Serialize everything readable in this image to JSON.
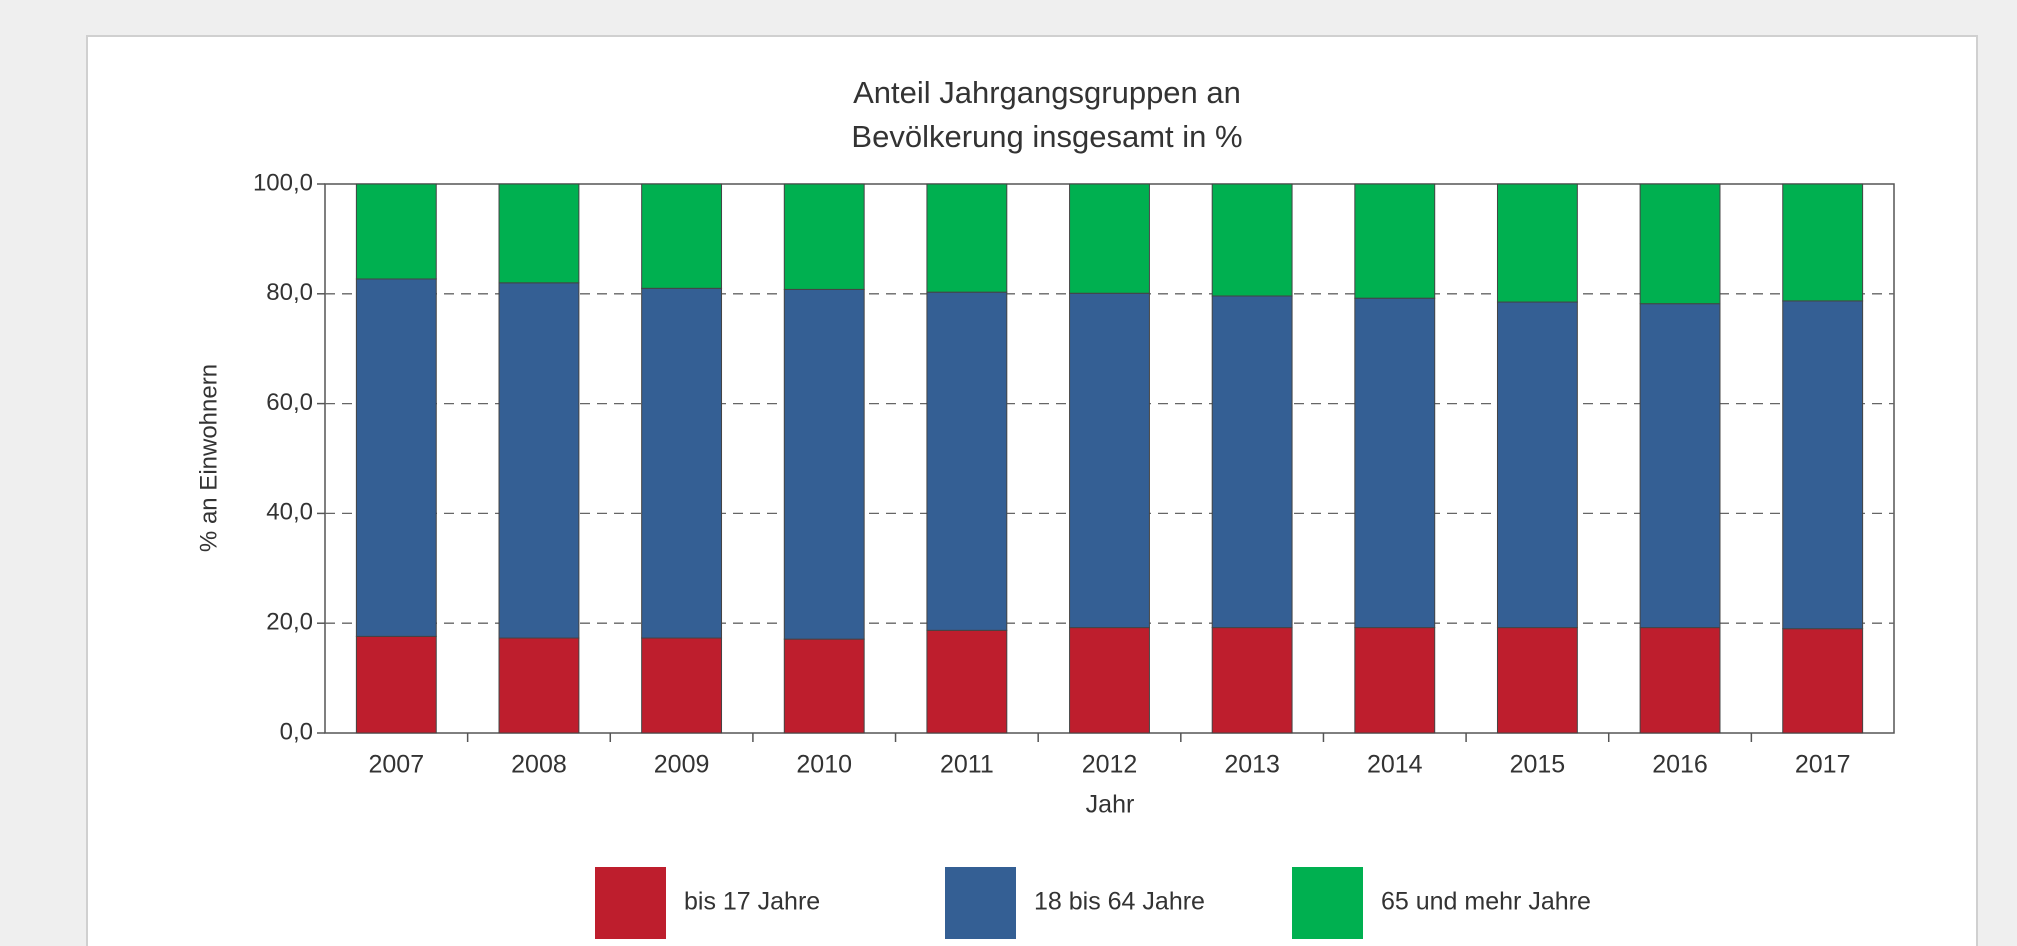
{
  "chart_data": {
    "type": "stacked_bar",
    "title": [
      "Anteil Jahrgangsgruppen an",
      "Bevölkerung insgesamt in %"
    ],
    "x_label": "Jahr",
    "y_label": "% an Einwohnern",
    "categories": [
      "2007",
      "2008",
      "2009",
      "2010",
      "2011",
      "2012",
      "2013",
      "2014",
      "2015",
      "2016",
      "2017"
    ],
    "series": [
      {
        "name": "bis 17 Jahre",
        "color": "#be1e2d",
        "values": [
          17.6,
          17.3,
          17.3,
          17.1,
          18.7,
          19.2,
          19.2,
          19.2,
          19.2,
          19.2,
          19.0
        ]
      },
      {
        "name": "18 bis 64 Jahre",
        "color": "#345f94",
        "values": [
          65.1,
          64.7,
          63.7,
          63.7,
          61.6,
          60.9,
          60.4,
          60.0,
          59.3,
          59.0,
          59.7
        ]
      },
      {
        "name": "65 und mehr Jahre",
        "color": "#00b050",
        "values": [
          17.3,
          18.0,
          19.0,
          19.2,
          19.7,
          19.9,
          20.4,
          20.8,
          21.5,
          21.8,
          21.3
        ]
      }
    ],
    "ylim": [
      0,
      100
    ],
    "yticks": [
      {
        "value": 0,
        "label": "0,0"
      },
      {
        "value": 20,
        "label": "20,0"
      },
      {
        "value": 40,
        "label": "40,0"
      },
      {
        "value": 60,
        "label": "60,0"
      },
      {
        "value": 80,
        "label": "80,0"
      },
      {
        "value": 100,
        "label": "100,0"
      }
    ],
    "grid": true,
    "legend": "bottom"
  }
}
